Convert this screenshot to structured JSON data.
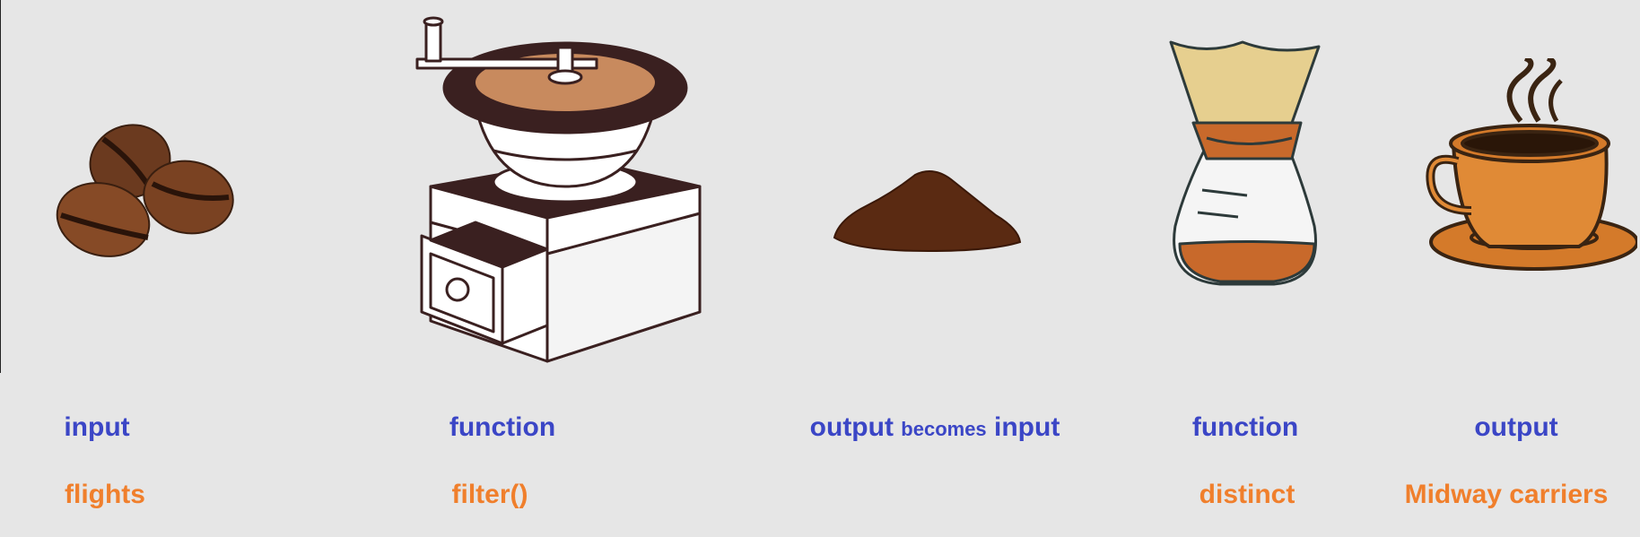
{
  "colors": {
    "background": "#e6e6e6",
    "role_text": "#3b46c6",
    "example_text": "#f07f2c"
  },
  "steps": [
    {
      "illustration": "coffee-beans-icon",
      "role": "input",
      "example": "flights"
    },
    {
      "illustration": "coffee-grinder-icon",
      "role": "function",
      "example": "filter()"
    },
    {
      "illustration": "ground-coffee-icon",
      "role_parts": [
        "output",
        "becomes",
        "input"
      ],
      "example": ""
    },
    {
      "illustration": "pour-over-coffee-maker-icon",
      "role": "function",
      "example": "distinct"
    },
    {
      "illustration": "coffee-cup-icon",
      "role": "output",
      "example": "Midway carriers"
    }
  ]
}
